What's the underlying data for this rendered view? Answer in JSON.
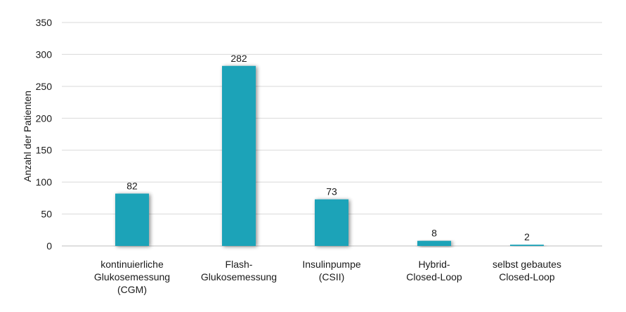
{
  "chart_data": {
    "type": "bar",
    "title": "",
    "xlabel": "",
    "ylabel": "Anzahl der Patienten",
    "ylim": [
      0,
      350
    ],
    "yticks": [
      0,
      50,
      100,
      150,
      200,
      250,
      300,
      350
    ],
    "grid": true,
    "legend": "none",
    "bar_color": "#1aa3b8",
    "categories": [
      [
        "kontinuierliche",
        "Glukosemessung",
        "(CGM)"
      ],
      [
        "Flash-",
        "Glukosemessung"
      ],
      [
        "Insulinpumpe",
        "(CSII)"
      ],
      [
        "Hybrid-",
        "Closed-Loop"
      ],
      [
        "selbst gebautes",
        "Closed-Loop"
      ]
    ],
    "values": [
      82,
      282,
      73,
      8,
      2
    ]
  }
}
